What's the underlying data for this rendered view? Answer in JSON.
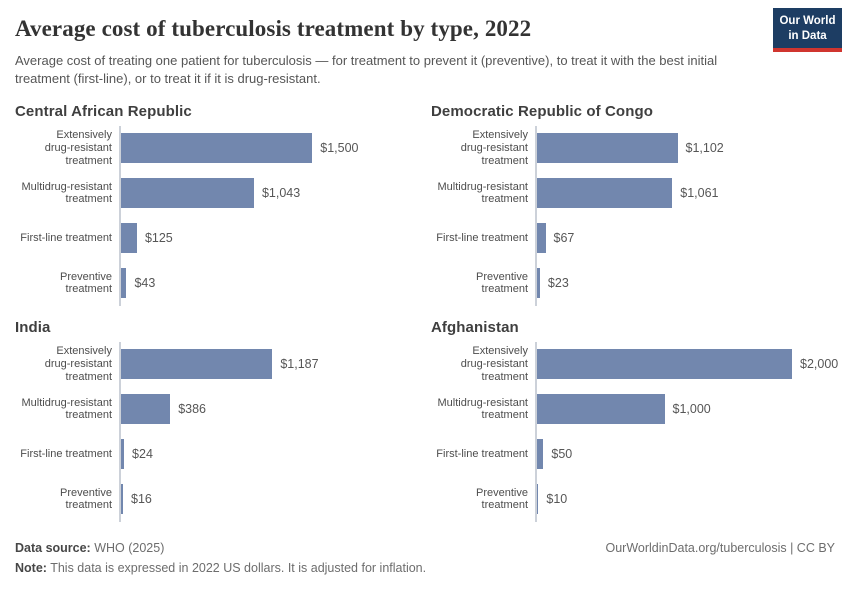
{
  "header": {
    "title": "Average cost of tuberculosis treatment by type, 2022",
    "subtitle": "Average cost of treating one patient for tuberculosis — for treatment to prevent it (preventive), to treat it with the best initial treatment (first-line), or to treat it if it is drug-resistant.",
    "logo": {
      "line1": "Our World",
      "line2": "in Data",
      "bg_color": "#1d3d63",
      "accent_color": "#d0352f"
    }
  },
  "chart_data": {
    "type": "bar",
    "orientation": "horizontal",
    "unit": "2022 US dollars",
    "xlim": [
      0,
      2000
    ],
    "grid": false,
    "bar_color": "#7287ae",
    "axis_color": "#ccd1d9",
    "categories": [
      "Extensively drug-resistant treatment",
      "Multidrug-resistant treatment",
      "First-line treatment",
      "Preventive treatment"
    ],
    "categories_display": [
      [
        "Extensively",
        "drug-resistant",
        "treatment"
      ],
      [
        "Multidrug-resistant",
        "treatment"
      ],
      [
        "First-line treatment"
      ],
      [
        "Preventive",
        "treatment"
      ]
    ],
    "panels": [
      {
        "title": "Central African Republic",
        "values": [
          1500,
          1043,
          125,
          43
        ],
        "value_labels": [
          "$1,500",
          "$1,043",
          "$125",
          "$43"
        ]
      },
      {
        "title": "Democratic Republic of Congo",
        "values": [
          1102,
          1061,
          67,
          23
        ],
        "value_labels": [
          "$1,102",
          "$1,061",
          "$67",
          "$23"
        ]
      },
      {
        "title": "India",
        "values": [
          1187,
          386,
          24,
          16
        ],
        "value_labels": [
          "$1,187",
          "$386",
          "$24",
          "$16"
        ]
      },
      {
        "title": "Afghanistan",
        "values": [
          2000,
          1000,
          50,
          10
        ],
        "value_labels": [
          "$2,000",
          "$1,000",
          "$50",
          "$10"
        ]
      }
    ]
  },
  "footer": {
    "source_label": "Data source:",
    "source_value": "WHO (2025)",
    "note_label": "Note:",
    "note_value": "This data is expressed in 2022 US dollars. It is adjusted for inflation.",
    "citation": "OurWorldinData.org/tuberculosis | CC BY"
  }
}
